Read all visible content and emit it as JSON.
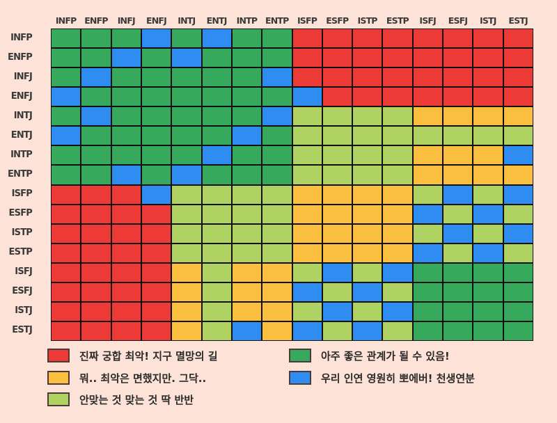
{
  "chart_data": {
    "type": "heatmap",
    "title": "",
    "x_labels": [
      "INFP",
      "ENFP",
      "INFJ",
      "ENFJ",
      "INTJ",
      "ENTJ",
      "INTP",
      "ENTP",
      "ISFP",
      "ESFP",
      "ISTP",
      "ESTP",
      "ISFJ",
      "ESFJ",
      "ISTJ",
      "ESTJ"
    ],
    "y_labels": [
      "INFP",
      "ENFP",
      "INFJ",
      "ENFJ",
      "INTJ",
      "ENTJ",
      "INTP",
      "ENTP",
      "ISFP",
      "ESFP",
      "ISTP",
      "ESTP",
      "ISFJ",
      "ESFJ",
      "ISTJ",
      "ESTJ"
    ],
    "categories": {
      "R": {
        "label": "진짜 궁합 최악! 지구 멸망의 길",
        "color": "#ec3b36"
      },
      "Y": {
        "label": "뭐.. 최악은 면했지만. 그닥..",
        "color": "#fbbf3f"
      },
      "L": {
        "label": "안맞는 것 맞는 것 딱 반반",
        "color": "#b0d263"
      },
      "G": {
        "label": "아주 좋은 관계가 될 수 있음!",
        "color": "#36a95c"
      },
      "B": {
        "label": "우리 인연 영원히 뽀에버! 천생연분",
        "color": "#2f8cf0"
      }
    },
    "matrix": [
      [
        "G",
        "G",
        "G",
        "B",
        "G",
        "B",
        "G",
        "G",
        "R",
        "R",
        "R",
        "R",
        "R",
        "R",
        "R",
        "R"
      ],
      [
        "G",
        "G",
        "B",
        "G",
        "B",
        "G",
        "G",
        "G",
        "R",
        "R",
        "R",
        "R",
        "R",
        "R",
        "R",
        "R"
      ],
      [
        "G",
        "B",
        "G",
        "G",
        "G",
        "G",
        "G",
        "B",
        "R",
        "R",
        "R",
        "R",
        "R",
        "R",
        "R",
        "R"
      ],
      [
        "B",
        "G",
        "G",
        "G",
        "G",
        "G",
        "G",
        "G",
        "B",
        "R",
        "R",
        "R",
        "R",
        "R",
        "R",
        "R"
      ],
      [
        "G",
        "B",
        "G",
        "G",
        "G",
        "G",
        "G",
        "B",
        "L",
        "L",
        "L",
        "L",
        "Y",
        "Y",
        "Y",
        "Y"
      ],
      [
        "B",
        "G",
        "G",
        "G",
        "G",
        "G",
        "B",
        "G",
        "L",
        "L",
        "L",
        "L",
        "L",
        "L",
        "L",
        "L"
      ],
      [
        "G",
        "G",
        "G",
        "G",
        "G",
        "B",
        "G",
        "G",
        "L",
        "L",
        "L",
        "L",
        "Y",
        "Y",
        "Y",
        "B"
      ],
      [
        "G",
        "G",
        "B",
        "G",
        "B",
        "G",
        "G",
        "G",
        "L",
        "L",
        "L",
        "L",
        "Y",
        "Y",
        "Y",
        "Y"
      ],
      [
        "R",
        "R",
        "R",
        "B",
        "L",
        "L",
        "L",
        "L",
        "Y",
        "Y",
        "Y",
        "Y",
        "L",
        "B",
        "L",
        "B"
      ],
      [
        "R",
        "R",
        "R",
        "R",
        "L",
        "L",
        "L",
        "L",
        "Y",
        "Y",
        "Y",
        "Y",
        "B",
        "L",
        "B",
        "L"
      ],
      [
        "R",
        "R",
        "R",
        "R",
        "L",
        "L",
        "L",
        "L",
        "Y",
        "Y",
        "Y",
        "Y",
        "L",
        "B",
        "L",
        "B"
      ],
      [
        "R",
        "R",
        "R",
        "R",
        "L",
        "L",
        "L",
        "L",
        "Y",
        "Y",
        "Y",
        "Y",
        "B",
        "L",
        "B",
        "L"
      ],
      [
        "R",
        "R",
        "R",
        "R",
        "Y",
        "L",
        "Y",
        "Y",
        "L",
        "B",
        "L",
        "B",
        "G",
        "G",
        "G",
        "G"
      ],
      [
        "R",
        "R",
        "R",
        "R",
        "Y",
        "L",
        "Y",
        "Y",
        "B",
        "L",
        "B",
        "L",
        "G",
        "G",
        "G",
        "G"
      ],
      [
        "R",
        "R",
        "R",
        "R",
        "Y",
        "L",
        "Y",
        "Y",
        "L",
        "B",
        "L",
        "B",
        "G",
        "G",
        "G",
        "G"
      ],
      [
        "R",
        "R",
        "R",
        "R",
        "Y",
        "L",
        "B",
        "Y",
        "B",
        "L",
        "B",
        "L",
        "G",
        "G",
        "G",
        "G"
      ]
    ],
    "legend_position": "bottom"
  },
  "legend": [
    {
      "key": "R",
      "label": "진짜 궁합 최악! 지구 멸망의 길",
      "color": "#ec3b36"
    },
    {
      "key": "Y",
      "label": "뭐.. 최악은 면했지만. 그닥..",
      "color": "#fbbf3f"
    },
    {
      "key": "L",
      "label": "안맞는 것 맞는 것 딱 반반",
      "color": "#b0d263"
    },
    {
      "key": "G",
      "label": "아주 좋은 관계가 될 수 있음!",
      "color": "#36a95c"
    },
    {
      "key": "B",
      "label": "우리 인연 영원히 뽀에버! 천생연분",
      "color": "#2f8cf0"
    }
  ]
}
